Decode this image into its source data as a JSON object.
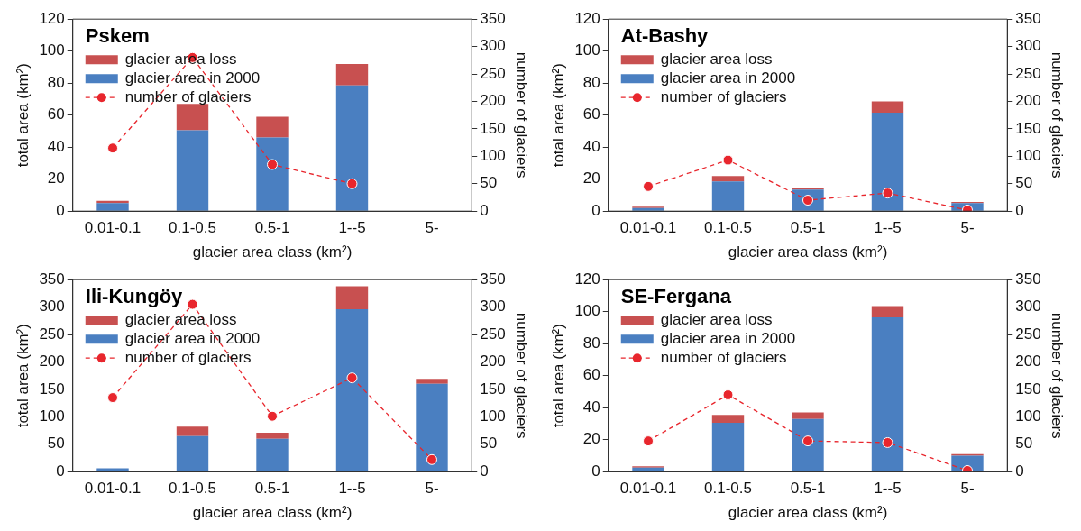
{
  "chart_data": [
    {
      "type": "bar",
      "title": "Pskem",
      "xlabel": "glacier area class (km²)",
      "ylabel": "total area (km²)",
      "y2label": "number of glaciers",
      "categories": [
        "0.01-0.1",
        "0.1-0.5",
        "0.5-1",
        "1--5",
        "5-"
      ],
      "stacked": true,
      "legend": "top left",
      "ylim": [
        0,
        120
      ],
      "yticks": [
        0,
        20,
        40,
        60,
        80,
        100,
        120
      ],
      "y2lim": [
        0,
        350
      ],
      "y2ticks": [
        0,
        50,
        100,
        150,
        200,
        250,
        300,
        350
      ],
      "series": [
        {
          "name": "glacier area in 2000",
          "color": "#4a7fc1",
          "values": [
            5,
            50.5,
            46,
            78.5,
            null
          ]
        },
        {
          "name": "glacier area loss",
          "color": "#c85050",
          "values": [
            1.5,
            16.5,
            13,
            13.5,
            null
          ]
        },
        {
          "name": "number of glaciers",
          "type": "line",
          "axis": "y2",
          "color": "#e8262d",
          "marker": "circle",
          "line_style": "dashed",
          "values": [
            115,
            280,
            85,
            50,
            null
          ]
        }
      ]
    },
    {
      "type": "bar",
      "title": "At-Bashy",
      "xlabel": "glacier area class (km²)",
      "ylabel": "total area (km²)",
      "y2label": "number of glaciers",
      "categories": [
        "0.01-0.1",
        "0.1-0.5",
        "0.5-1",
        "1--5",
        "5-"
      ],
      "stacked": true,
      "legend": "top left",
      "ylim": [
        0,
        120
      ],
      "yticks": [
        0,
        20,
        40,
        60,
        80,
        100,
        120
      ],
      "y2lim": [
        0,
        350
      ],
      "y2ticks": [
        0,
        50,
        100,
        150,
        200,
        250,
        300,
        350
      ],
      "series": [
        {
          "name": "glacier area in 2000",
          "color": "#4a7fc1",
          "values": [
            2,
            18.5,
            13.5,
            61.5,
            5
          ]
        },
        {
          "name": "glacier area loss",
          "color": "#c85050",
          "values": [
            0.8,
            3.5,
            1.2,
            7,
            0.8
          ]
        },
        {
          "name": "number of glaciers",
          "type": "line",
          "axis": "y2",
          "color": "#e8262d",
          "marker": "circle",
          "line_style": "dashed",
          "values": [
            45,
            93,
            20,
            33,
            2
          ]
        }
      ]
    },
    {
      "type": "bar",
      "title": "Ili-Kungöy",
      "xlabel": "glacier area class (km²)",
      "ylabel": "total area (km²)",
      "y2label": "number of glaciers",
      "categories": [
        "0.01-0.1",
        "0.1-0.5",
        "0.5-1",
        "1--5",
        "5-"
      ],
      "stacked": true,
      "legend": "top left",
      "ylim": [
        0,
        350
      ],
      "yticks": [
        0,
        50,
        100,
        150,
        200,
        250,
        300,
        350
      ],
      "y2lim": [
        0,
        350
      ],
      "y2ticks": [
        0,
        50,
        100,
        150,
        200,
        250,
        300,
        350
      ],
      "series": [
        {
          "name": "glacier area in 2000",
          "color": "#4a7fc1",
          "values": [
            6,
            65,
            60,
            296,
            160
          ]
        },
        {
          "name": "glacier area loss",
          "color": "#c85050",
          "values": [
            null,
            17,
            11,
            42,
            9
          ]
        },
        {
          "name": "number of glaciers",
          "type": "line",
          "axis": "y2",
          "color": "#e8262d",
          "marker": "circle",
          "line_style": "dashed",
          "values": [
            135,
            305,
            101,
            171,
            22
          ]
        }
      ]
    },
    {
      "type": "bar",
      "title": "SE-Fergana",
      "xlabel": "glacier area class (km²)",
      "ylabel": "total area (km²)",
      "y2label": "number of glaciers",
      "categories": [
        "0.01-0.1",
        "0.1-0.5",
        "0.5-1",
        "1--5",
        "5-"
      ],
      "stacked": true,
      "legend": "top left",
      "ylim": [
        0,
        120
      ],
      "yticks": [
        0,
        20,
        40,
        60,
        80,
        100,
        120
      ],
      "y2lim": [
        0,
        350
      ],
      "y2ticks": [
        0,
        50,
        100,
        150,
        200,
        250,
        300,
        350
      ],
      "series": [
        {
          "name": "glacier area in 2000",
          "color": "#4a7fc1",
          "values": [
            2.5,
            30.5,
            33,
            96.5,
            10
          ]
        },
        {
          "name": "glacier area loss",
          "color": "#c85050",
          "values": [
            0.8,
            5,
            4,
            7,
            1
          ]
        },
        {
          "name": "number of glaciers",
          "type": "line",
          "axis": "y2",
          "color": "#e8262d",
          "marker": "circle",
          "line_style": "dashed",
          "values": [
            56,
            140,
            56,
            53,
            2
          ]
        }
      ]
    }
  ]
}
